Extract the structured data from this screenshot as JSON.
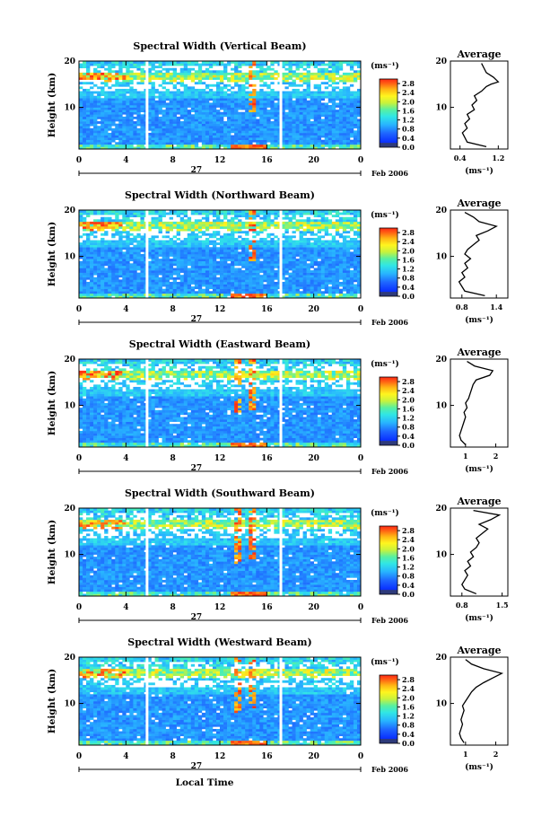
{
  "chart_data": [
    {
      "type": "heatmap",
      "title": "Spectral Width (Vertical Beam)",
      "ylabel": "Height (km)",
      "ylim": [
        1,
        20
      ],
      "yticks": [
        "10",
        "20"
      ],
      "xticks": [
        "0",
        "4",
        "8",
        "12",
        "16",
        "20",
        "0"
      ],
      "xlim": [
        0,
        24
      ],
      "date_day": "27",
      "date_label": "Feb 2006",
      "data_gaps_hours": [
        5.8,
        17.2
      ],
      "colorbar": {
        "unit": "(ms⁻¹)",
        "ticks": [
          "2.8",
          "2.4",
          "2.0",
          "1.6",
          "1.2",
          "0.8",
          "0.4",
          "0.0"
        ],
        "range": [
          0,
          3.0
        ]
      },
      "average": {
        "title": "Average",
        "xlabel": "(ms⁻¹)",
        "xticks": [
          "0.4",
          "1.2"
        ],
        "xlim": [
          0.2,
          1.4
        ],
        "yticks": [
          "10",
          "20"
        ],
        "ylim": [
          1,
          20
        ],
        "profile": [
          [
            0.95,
            1.5
          ],
          [
            0.55,
            2.5
          ],
          [
            0.5,
            3.5
          ],
          [
            0.45,
            4.5
          ],
          [
            0.55,
            5.5
          ],
          [
            0.5,
            6.5
          ],
          [
            0.6,
            7.5
          ],
          [
            0.55,
            8.5
          ],
          [
            0.7,
            9.5
          ],
          [
            0.65,
            10.5
          ],
          [
            0.75,
            11.5
          ],
          [
            0.7,
            12.5
          ],
          [
            0.85,
            13.5
          ],
          [
            0.95,
            14.5
          ],
          [
            1.05,
            15.0
          ],
          [
            1.2,
            15.5
          ],
          [
            1.1,
            16.5
          ],
          [
            0.95,
            17.5
          ],
          [
            0.9,
            18.5
          ],
          [
            0.85,
            19.5
          ]
        ]
      }
    },
    {
      "type": "heatmap",
      "title": "Spectral Width (Northward Beam)",
      "ylabel": "Height (km)",
      "ylim": [
        1,
        20
      ],
      "yticks": [
        "10",
        "20"
      ],
      "xticks": [
        "0",
        "4",
        "8",
        "12",
        "16",
        "20",
        "0"
      ],
      "xlim": [
        0,
        24
      ],
      "date_day": "27",
      "date_label": "Feb 2006",
      "data_gaps_hours": [
        5.8,
        17.2
      ],
      "colorbar": {
        "unit": "(ms⁻¹)",
        "ticks": [
          "2.8",
          "2.4",
          "2.0",
          "1.6",
          "1.2",
          "0.8",
          "0.4",
          "0.0"
        ],
        "range": [
          0,
          3.0
        ]
      },
      "average": {
        "title": "Average",
        "xlabel": "(ms⁻¹)",
        "xticks": [
          "0.8",
          "1.4"
        ],
        "xlim": [
          0.6,
          1.6
        ],
        "yticks": [
          "10",
          "20"
        ],
        "ylim": [
          1,
          20
        ],
        "profile": [
          [
            1.2,
            1.5
          ],
          [
            0.85,
            2.5
          ],
          [
            0.8,
            3.5
          ],
          [
            0.75,
            4.5
          ],
          [
            0.85,
            5.5
          ],
          [
            0.8,
            6.5
          ],
          [
            0.9,
            7.5
          ],
          [
            0.85,
            8.5
          ],
          [
            0.95,
            9.5
          ],
          [
            0.85,
            10.5
          ],
          [
            0.9,
            11.5
          ],
          [
            1.0,
            12.5
          ],
          [
            1.1,
            13.5
          ],
          [
            1.05,
            14.5
          ],
          [
            1.25,
            15.5
          ],
          [
            1.4,
            16.5
          ],
          [
            1.1,
            17.5
          ],
          [
            1.0,
            18.5
          ],
          [
            0.85,
            19.5
          ]
        ]
      }
    },
    {
      "type": "heatmap",
      "title": "Spectral Width (Eastward Beam)",
      "ylabel": "Height (km)",
      "ylim": [
        1,
        20
      ],
      "yticks": [
        "10",
        "20"
      ],
      "xticks": [
        "0",
        "4",
        "8",
        "12",
        "16",
        "20",
        "0"
      ],
      "xlim": [
        0,
        24
      ],
      "date_day": "27",
      "date_label": "Feb 2006",
      "data_gaps_hours": [
        5.8,
        17.2
      ],
      "colorbar": {
        "unit": "(ms⁻¹)",
        "ticks": [
          "2.8",
          "2.4",
          "2.0",
          "1.6",
          "1.2",
          "0.8",
          "0.4",
          "0.0"
        ],
        "range": [
          0,
          3.0
        ]
      },
      "average": {
        "title": "Average",
        "xlabel": "(ms⁻¹)",
        "xticks": [
          "1",
          "2"
        ],
        "xlim": [
          0.5,
          2.4
        ],
        "yticks": [
          "10",
          "20"
        ],
        "ylim": [
          1,
          20
        ],
        "profile": [
          [
            1.0,
            1.5
          ],
          [
            0.85,
            2.5
          ],
          [
            0.8,
            3.5
          ],
          [
            0.85,
            4.5
          ],
          [
            0.9,
            5.5
          ],
          [
            0.95,
            6.5
          ],
          [
            1.0,
            7.5
          ],
          [
            0.95,
            8.5
          ],
          [
            1.05,
            9.5
          ],
          [
            1.0,
            10.5
          ],
          [
            1.1,
            11.5
          ],
          [
            1.15,
            12.5
          ],
          [
            1.2,
            13.5
          ],
          [
            1.25,
            14.5
          ],
          [
            1.35,
            15.5
          ],
          [
            1.8,
            16.5
          ],
          [
            1.9,
            17.5
          ],
          [
            1.3,
            18.5
          ],
          [
            1.05,
            19.5
          ]
        ]
      }
    },
    {
      "type": "heatmap",
      "title": "Spectral Width (Southward Beam)",
      "ylabel": "Height (km)",
      "ylim": [
        1,
        20
      ],
      "yticks": [
        "10",
        "20"
      ],
      "xticks": [
        "0",
        "4",
        "8",
        "12",
        "16",
        "20",
        "0"
      ],
      "xlim": [
        0,
        24
      ],
      "date_day": "27",
      "date_label": "Feb 2006",
      "data_gaps_hours": [
        5.8,
        17.2
      ],
      "colorbar": {
        "unit": "(ms⁻¹)",
        "ticks": [
          "2.8",
          "2.4",
          "2.0",
          "1.6",
          "1.2",
          "0.8",
          "0.4",
          "0.0"
        ],
        "range": [
          0,
          3.0
        ]
      },
      "average": {
        "title": "Average",
        "xlabel": "(ms⁻¹)",
        "xticks": [
          "0.8",
          "1.5"
        ],
        "xlim": [
          0.6,
          1.6
        ],
        "yticks": [
          "10",
          "20"
        ],
        "ylim": [
          1,
          20
        ],
        "profile": [
          [
            1.05,
            1.5
          ],
          [
            0.85,
            2.5
          ],
          [
            0.8,
            3.5
          ],
          [
            0.85,
            4.5
          ],
          [
            0.9,
            5.5
          ],
          [
            0.85,
            6.5
          ],
          [
            0.95,
            7.5
          ],
          [
            0.9,
            8.5
          ],
          [
            1.0,
            9.5
          ],
          [
            0.95,
            10.5
          ],
          [
            1.05,
            11.5
          ],
          [
            1.1,
            12.5
          ],
          [
            1.05,
            13.5
          ],
          [
            1.15,
            14.5
          ],
          [
            1.25,
            15.5
          ],
          [
            1.1,
            16.5
          ],
          [
            1.3,
            17.5
          ],
          [
            1.45,
            18.5
          ],
          [
            1.0,
            19.5
          ]
        ]
      }
    },
    {
      "type": "heatmap",
      "title": "Spectral Width (Westward Beam)",
      "ylabel": "Height (km)",
      "ylim": [
        1,
        20
      ],
      "yticks": [
        "10",
        "20"
      ],
      "xticks": [
        "0",
        "4",
        "8",
        "12",
        "16",
        "20",
        "0"
      ],
      "xlim": [
        0,
        24
      ],
      "date_day": "27",
      "date_label": "Feb 2006",
      "xlabel": "Local Time",
      "data_gaps_hours": [
        5.8,
        17.2
      ],
      "colorbar": {
        "unit": "(ms⁻¹)",
        "ticks": [
          "2.8",
          "2.4",
          "2.0",
          "1.6",
          "1.2",
          "0.8",
          "0.4",
          "0.0"
        ],
        "range": [
          0,
          3.0
        ]
      },
      "average": {
        "title": "Average",
        "xlabel": "(ms⁻¹)",
        "xticks": [
          "1",
          "2"
        ],
        "xlim": [
          0.5,
          2.4
        ],
        "yticks": [
          "10",
          "20"
        ],
        "ylim": [
          1,
          20
        ],
        "profile": [
          [
            0.95,
            1.5
          ],
          [
            0.85,
            2.5
          ],
          [
            0.8,
            3.5
          ],
          [
            0.85,
            4.5
          ],
          [
            0.9,
            5.5
          ],
          [
            0.85,
            6.5
          ],
          [
            0.9,
            7.5
          ],
          [
            0.95,
            8.5
          ],
          [
            0.9,
            9.5
          ],
          [
            1.0,
            10.5
          ],
          [
            1.1,
            11.5
          ],
          [
            1.2,
            12.5
          ],
          [
            1.35,
            13.5
          ],
          [
            1.6,
            14.5
          ],
          [
            1.9,
            15.5
          ],
          [
            2.2,
            16.5
          ],
          [
            1.6,
            17.5
          ],
          [
            1.2,
            18.5
          ],
          [
            1.0,
            19.5
          ]
        ]
      }
    }
  ]
}
